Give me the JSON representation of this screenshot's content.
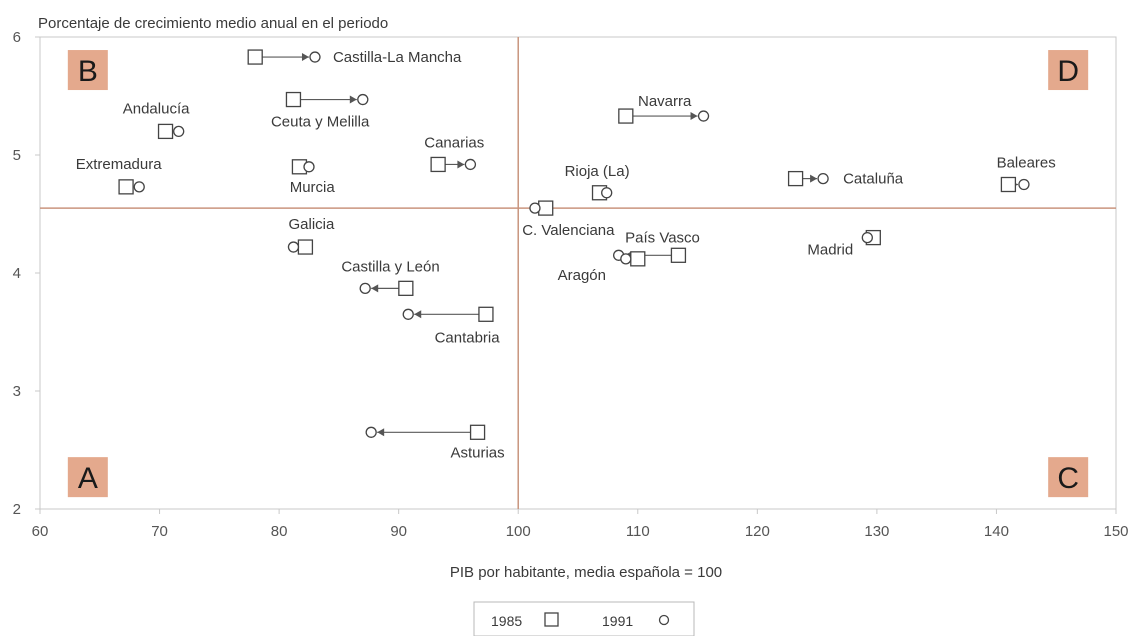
{
  "chart_data": {
    "type": "scatter",
    "title": "Porcentaje de crecimiento medio anual en el periodo",
    "xlabel": "PIB por habitante, media española = 100",
    "ylabel": "",
    "xlim": [
      60,
      150
    ],
    "ylim": [
      2,
      6
    ],
    "x_ticks": [
      "60",
      "70",
      "80",
      "90",
      "100",
      "110",
      "120",
      "130",
      "140",
      "150"
    ],
    "y_ticks": [
      "2",
      "3",
      "4",
      "5",
      "6"
    ],
    "x_divider": 100,
    "y_divider": 4.55,
    "quadrants": [
      {
        "label": "A",
        "x": 64,
        "y": 2.27
      },
      {
        "label": "B",
        "x": 64,
        "y": 5.72
      },
      {
        "label": "C",
        "x": 146,
        "y": 2.27
      },
      {
        "label": "D",
        "x": 146,
        "y": 5.72
      }
    ],
    "legend": [
      {
        "label": "1985",
        "marker": "square"
      },
      {
        "label": "1991",
        "marker": "circle"
      }
    ],
    "series": [
      {
        "name": "Castilla-La Mancha",
        "x1985": 78,
        "x1991": 83,
        "y": 5.83
      },
      {
        "name": "Navarra",
        "x1985": 109,
        "x1991": 115.5,
        "y": 5.33
      },
      {
        "name": "Ceuta y Melilla",
        "x1985": 81.2,
        "x1991": 87,
        "y": 5.47
      },
      {
        "name": "Andalucía",
        "x1985": 70.5,
        "x1991": 71.6,
        "y": 5.2
      },
      {
        "name": "Extremadura",
        "x1985": 67.2,
        "x1991": 68.3,
        "y": 4.73
      },
      {
        "name": "Murcia",
        "x1985": 81.7,
        "x1991": 82.5,
        "y": 4.9
      },
      {
        "name": "Canarias",
        "x1985": 93.3,
        "x1991": 96,
        "y": 4.92
      },
      {
        "name": "Rioja (La)",
        "x1985": 106.8,
        "x1991": 107.4,
        "y": 4.68
      },
      {
        "name": "Cataluña",
        "x1985": 123.2,
        "x1991": 125.5,
        "y": 4.8
      },
      {
        "name": "Baleares",
        "x1985": 141,
        "x1991": 142.3,
        "y": 4.75
      },
      {
        "name": "C. Valenciana",
        "x1985": 102.3,
        "x1991": 101.4,
        "y": 4.55
      },
      {
        "name": "Galicia",
        "x1985": 82.2,
        "x1991": 81.2,
        "y": 4.22
      },
      {
        "name": "País Vasco",
        "x1985": 113.4,
        "x1991": 108.4,
        "y": 4.15
      },
      {
        "name": "Madrid",
        "x1985": 129.7,
        "x1991": 129.2,
        "y": 4.3
      },
      {
        "name": "Aragón",
        "x1985": 110,
        "x1991": 109,
        "y": 4.12
      },
      {
        "name": "Castilla y León",
        "x1985": 90.6,
        "x1991": 87.2,
        "y": 3.87
      },
      {
        "name": "Cantabria",
        "x1985": 97.3,
        "x1991": 90.8,
        "y": 3.65
      },
      {
        "name": "Asturias",
        "x1985": 96.6,
        "x1991": 87.7,
        "y": 2.65
      }
    ]
  }
}
